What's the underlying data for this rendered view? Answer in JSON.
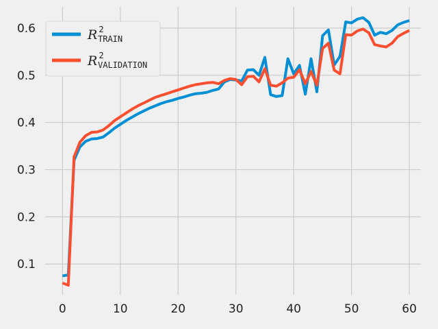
{
  "chart_data": {
    "type": "line",
    "title": "",
    "xlabel": "",
    "ylabel": "",
    "xlim": [
      -3,
      62
    ],
    "ylim": [
      0.035,
      0.645
    ],
    "grid": true,
    "legend_position": "top-left",
    "x_ticks": [
      0,
      10,
      20,
      30,
      40,
      50,
      60
    ],
    "y_ticks": [
      0.1,
      0.2,
      0.3,
      0.4,
      0.5,
      0.6
    ],
    "colors": {
      "background": "#f0f0f0",
      "grid": "#cbcbcb",
      "train": "#008fd5",
      "validation": "#fc4f30"
    },
    "series": [
      {
        "name": "TRAIN",
        "legend": {
          "base": "R",
          "sup": "2",
          "sub": "TRAIN"
        },
        "color": "#008fd5",
        "x": [
          0,
          1,
          2,
          3,
          4,
          5,
          6,
          7,
          8,
          9,
          10,
          11,
          12,
          13,
          14,
          15,
          16,
          17,
          18,
          19,
          20,
          21,
          22,
          23,
          24,
          25,
          26,
          27,
          28,
          29,
          30,
          31,
          32,
          33,
          34,
          35,
          36,
          37,
          38,
          39,
          40,
          41,
          42,
          43,
          44,
          45,
          46,
          47,
          48,
          49,
          50,
          51,
          52,
          53,
          54,
          55,
          56,
          57,
          58,
          59,
          60
        ],
        "values": [
          0.075,
          0.077,
          0.32,
          0.348,
          0.36,
          0.365,
          0.366,
          0.369,
          0.378,
          0.388,
          0.396,
          0.404,
          0.411,
          0.418,
          0.424,
          0.43,
          0.435,
          0.44,
          0.444,
          0.447,
          0.451,
          0.454,
          0.458,
          0.461,
          0.462,
          0.464,
          0.468,
          0.471,
          0.486,
          0.491,
          0.49,
          0.488,
          0.511,
          0.512,
          0.5,
          0.538,
          0.459,
          0.455,
          0.457,
          0.535,
          0.503,
          0.521,
          0.46,
          0.535,
          0.465,
          0.584,
          0.596,
          0.522,
          0.54,
          0.613,
          0.611,
          0.619,
          0.622,
          0.612,
          0.585,
          0.591,
          0.588,
          0.595,
          0.607,
          0.612,
          0.616
        ]
      },
      {
        "name": "VALIDATION",
        "legend": {
          "base": "R",
          "sup": "2",
          "sub": "VALIDATION"
        },
        "color": "#fc4f30",
        "x": [
          0,
          1,
          2,
          3,
          4,
          5,
          6,
          7,
          8,
          9,
          10,
          11,
          12,
          13,
          14,
          15,
          16,
          17,
          18,
          19,
          20,
          21,
          22,
          23,
          24,
          25,
          26,
          27,
          28,
          29,
          30,
          31,
          32,
          33,
          34,
          35,
          36,
          37,
          38,
          39,
          40,
          41,
          42,
          43,
          44,
          45,
          46,
          47,
          48,
          49,
          50,
          51,
          52,
          53,
          54,
          55,
          56,
          57,
          58,
          59,
          60
        ],
        "values": [
          0.06,
          0.055,
          0.327,
          0.358,
          0.372,
          0.379,
          0.38,
          0.384,
          0.393,
          0.404,
          0.412,
          0.42,
          0.428,
          0.435,
          0.441,
          0.447,
          0.453,
          0.457,
          0.461,
          0.465,
          0.469,
          0.473,
          0.477,
          0.48,
          0.482,
          0.484,
          0.485,
          0.482,
          0.489,
          0.493,
          0.491,
          0.48,
          0.497,
          0.498,
          0.486,
          0.514,
          0.479,
          0.477,
          0.484,
          0.494,
          0.496,
          0.512,
          0.482,
          0.508,
          0.479,
          0.557,
          0.568,
          0.511,
          0.503,
          0.586,
          0.585,
          0.594,
          0.598,
          0.59,
          0.565,
          0.562,
          0.56,
          0.568,
          0.582,
          0.589,
          0.595
        ]
      }
    ]
  }
}
